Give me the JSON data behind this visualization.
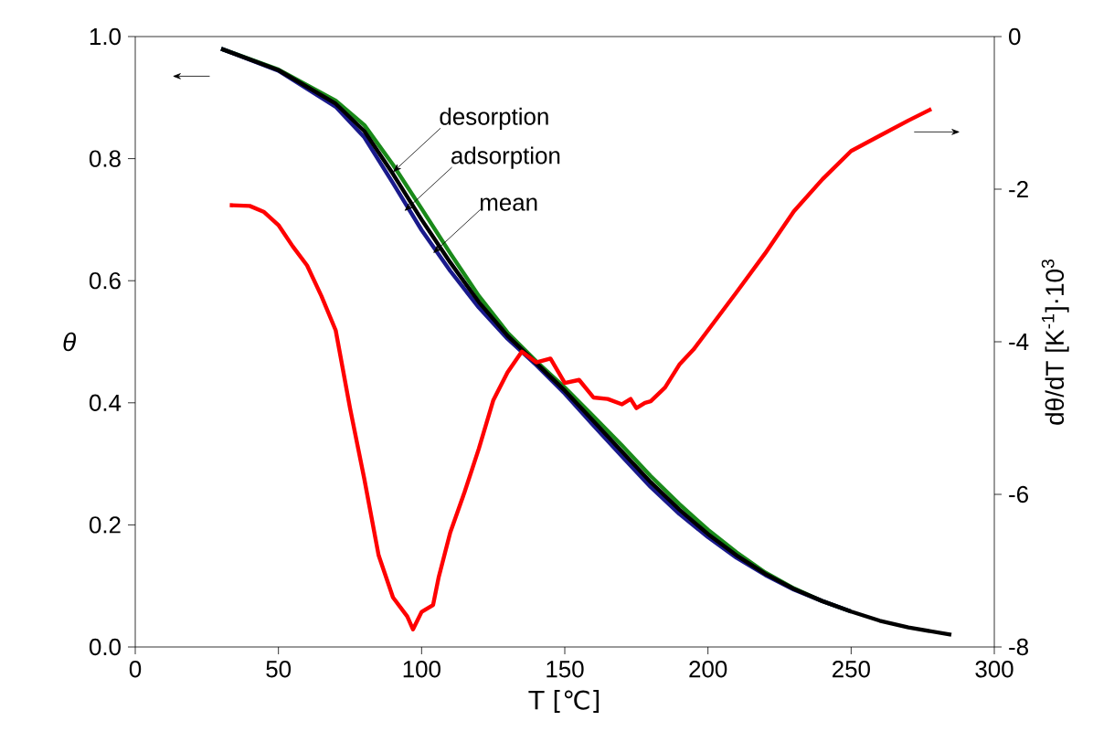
{
  "chart_data": {
    "type": "line",
    "xlabel": "T [℃]",
    "ylabel": "θ",
    "y2label": "dθ/dT  [K$^{-1}$]·10$^{3}$",
    "xlim": [
      0,
      300
    ],
    "xticks": [
      0,
      50,
      100,
      150,
      200,
      250,
      300
    ],
    "ylim": [
      0,
      1
    ],
    "yticks": [
      {
        "value": 0,
        "label": "0.0"
      },
      {
        "value": 0.2,
        "label": "0.2"
      },
      {
        "value": 0.4,
        "label": "0.4"
      },
      {
        "value": 0.6,
        "label": "0.6"
      },
      {
        "value": 0.8,
        "label": "0.8"
      },
      {
        "value": 1,
        "label": "1.0"
      }
    ],
    "y2lim": [
      -8,
      0
    ],
    "y2ticks": [
      -8,
      -6,
      -4,
      -2,
      0
    ],
    "grid": false,
    "marker": "none",
    "line_style": "solid",
    "series": [
      {
        "color": "#1a8a1a",
        "x": [
          30,
          50,
          70,
          80,
          90,
          100,
          110,
          120,
          130,
          140,
          150,
          160,
          170,
          180,
          190,
          200,
          210,
          220,
          230,
          240,
          250
        ],
        "values": [
          0.98,
          0.946,
          0.895,
          0.855,
          0.79,
          0.718,
          0.645,
          0.575,
          0.515,
          0.468,
          0.425,
          0.378,
          0.33,
          0.28,
          0.234,
          0.192,
          0.155,
          0.122,
          0.096,
          0.075,
          0.058
        ]
      },
      {
        "color": "#1a1a8c",
        "x": [
          30,
          50,
          70,
          80,
          90,
          100,
          110,
          120,
          130,
          140,
          150,
          160,
          170,
          180,
          190,
          200,
          210,
          220,
          230,
          240,
          250
        ],
        "values": [
          0.98,
          0.944,
          0.885,
          0.835,
          0.76,
          0.683,
          0.616,
          0.556,
          0.505,
          0.462,
          0.415,
          0.363,
          0.312,
          0.262,
          0.218,
          0.18,
          0.146,
          0.118,
          0.094,
          0.075,
          0.058
        ]
      },
      {
        "color": "#000000",
        "x": [
          30,
          50,
          70,
          80,
          90,
          100,
          110,
          120,
          130,
          140,
          150,
          160,
          170,
          180,
          190,
          200,
          210,
          220,
          230,
          240,
          250,
          260,
          270,
          285
        ],
        "values": [
          0.98,
          0.945,
          0.89,
          0.845,
          0.775,
          0.7,
          0.63,
          0.565,
          0.51,
          0.465,
          0.42,
          0.37,
          0.32,
          0.27,
          0.225,
          0.185,
          0.15,
          0.12,
          0.095,
          0.075,
          0.058,
          0.043,
          0.032,
          0.02
        ]
      },
      {
        "color": "#ff0000",
        "axis": "y2",
        "x": [
          33,
          40,
          45,
          50,
          55,
          60,
          65,
          70,
          75,
          80,
          85,
          90,
          95,
          97,
          100,
          104,
          106,
          110,
          115,
          120,
          125,
          130,
          135,
          140,
          145,
          150,
          155,
          160,
          165,
          170,
          173,
          175,
          178,
          180,
          185,
          190,
          195,
          200,
          210,
          220,
          230,
          240,
          250,
          260,
          270,
          278
        ],
        "values": [
          -2.21,
          -2.22,
          -2.3,
          -2.47,
          -2.75,
          -3.0,
          -3.4,
          -3.85,
          -4.87,
          -5.8,
          -6.8,
          -7.35,
          -7.6,
          -7.77,
          -7.54,
          -7.45,
          -7.08,
          -6.5,
          -5.97,
          -5.4,
          -4.77,
          -4.4,
          -4.13,
          -4.27,
          -4.22,
          -4.54,
          -4.5,
          -4.73,
          -4.75,
          -4.82,
          -4.75,
          -4.87,
          -4.8,
          -4.78,
          -4.6,
          -4.3,
          -4.1,
          -3.85,
          -3.35,
          -2.84,
          -2.29,
          -1.87,
          -1.5,
          -1.3,
          -1.1,
          -0.95
        ]
      }
    ],
    "annotations": [
      {
        "text": "desorption",
        "x": 90,
        "y": 0.778
      },
      {
        "text": "adsorption",
        "x": 94,
        "y": 0.714
      },
      {
        "text": "mean",
        "x": 104,
        "y": 0.645
      }
    ]
  }
}
